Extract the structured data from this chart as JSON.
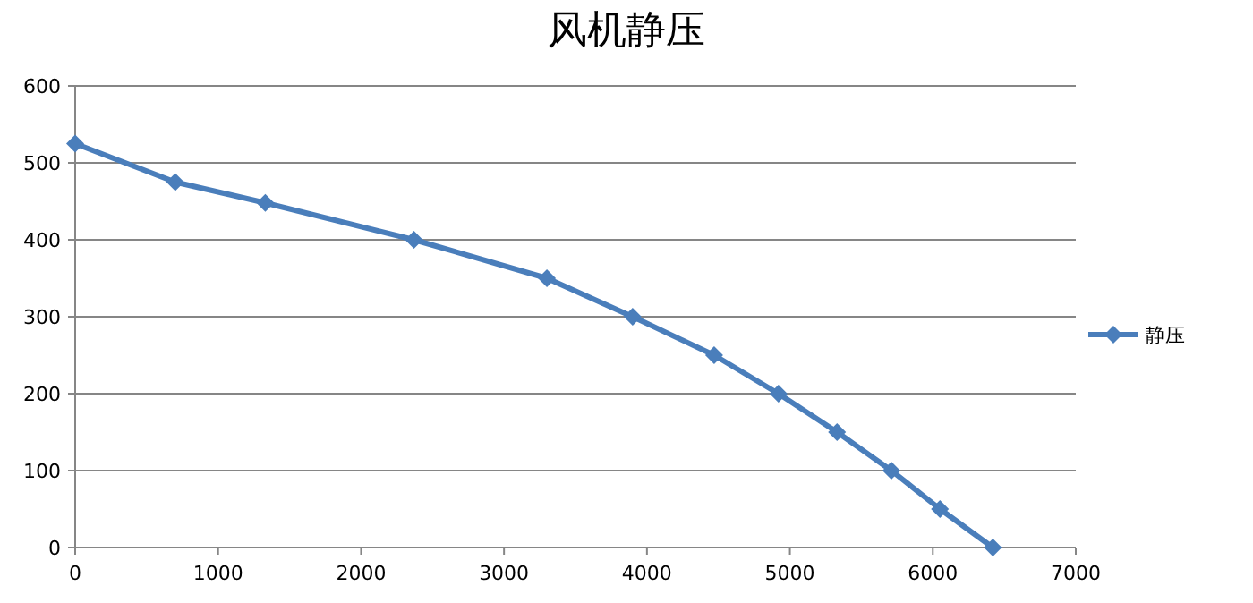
{
  "chart_data": {
    "type": "line",
    "title": "风机静压",
    "x": [
      0,
      700,
      1330,
      2370,
      3300,
      3900,
      4470,
      4920,
      5330,
      5710,
      6050,
      6420
    ],
    "series": [
      {
        "name": "静压",
        "color": "#4a7ebb",
        "values": [
          525,
          475,
          448,
          400,
          350,
          300,
          250,
          200,
          150,
          100,
          50,
          0
        ]
      }
    ],
    "xlim": [
      0,
      7000
    ],
    "ylim": [
      0,
      600
    ],
    "xticks": [
      0,
      1000,
      2000,
      3000,
      4000,
      5000,
      6000,
      7000
    ],
    "yticks": [
      0,
      100,
      200,
      300,
      400,
      500,
      600
    ],
    "grid": "y",
    "legend": "right",
    "marker": "diamond"
  }
}
